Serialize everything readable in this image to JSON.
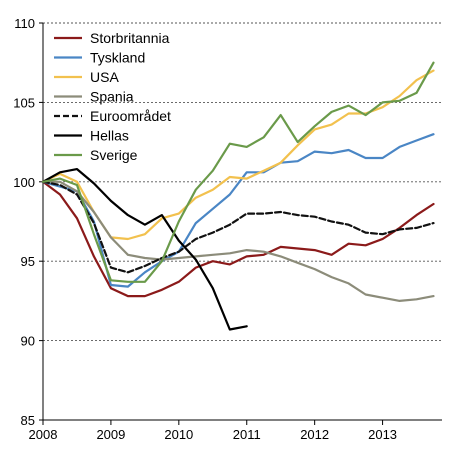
{
  "chart_data": {
    "type": "line",
    "title": "",
    "xlabel": "",
    "ylabel": "",
    "xlim": [
      2008,
      2013.875
    ],
    "ylim": [
      85,
      110
    ],
    "yticks": [
      85,
      90,
      95,
      100,
      105,
      110
    ],
    "xticks": [
      2008,
      2009,
      2010,
      2011,
      2012,
      2013
    ],
    "grid": "horizontal-dotted",
    "legend_position": "top-left",
    "series": [
      {
        "name": "Storbritannia",
        "color": "#8b1a1a",
        "dash": "solid",
        "x": [
          2008,
          2008.25,
          2008.5,
          2008.75,
          2009,
          2009.25,
          2009.5,
          2009.75,
          2010,
          2010.25,
          2010.5,
          2010.75,
          2011,
          2011.25,
          2011.5,
          2011.75,
          2012,
          2012.25,
          2012.5,
          2012.75,
          2013,
          2013.25,
          2013.5,
          2013.75
        ],
        "values": [
          100,
          99.2,
          97.7,
          95.3,
          93.3,
          92.8,
          92.8,
          93.2,
          93.7,
          94.6,
          95.0,
          94.8,
          95.3,
          95.4,
          95.9,
          95.8,
          95.7,
          95.4,
          96.1,
          96.0,
          96.4,
          97.1,
          97.9,
          98.6
        ]
      },
      {
        "name": "Tyskland",
        "color": "#4a86c5",
        "dash": "solid",
        "x": [
          2008,
          2008.25,
          2008.5,
          2008.75,
          2009,
          2009.25,
          2009.5,
          2009.75,
          2010,
          2010.25,
          2010.5,
          2010.75,
          2011,
          2011.25,
          2011.5,
          2011.75,
          2012,
          2012.25,
          2012.5,
          2012.75,
          2013,
          2013.25,
          2013.5,
          2013.75
        ],
        "values": [
          100,
          99.7,
          99.4,
          97.5,
          93.5,
          93.4,
          94.3,
          95.0,
          95.6,
          97.4,
          98.3,
          99.2,
          100.6,
          100.6,
          101.2,
          101.3,
          101.9,
          101.8,
          102.0,
          101.5,
          101.5,
          102.2,
          102.6,
          103.0
        ]
      },
      {
        "name": "USA",
        "color": "#f2c14e",
        "dash": "solid",
        "x": [
          2008,
          2008.25,
          2008.5,
          2008.75,
          2009,
          2009.25,
          2009.5,
          2009.75,
          2010,
          2010.25,
          2010.5,
          2010.75,
          2011,
          2011.25,
          2011.5,
          2011.75,
          2012,
          2012.25,
          2012.5,
          2012.75,
          2013,
          2013.25,
          2013.5,
          2013.75
        ],
        "values": [
          100,
          100.5,
          100.0,
          98.1,
          96.5,
          96.4,
          96.7,
          97.7,
          98.0,
          99.0,
          99.5,
          100.3,
          100.2,
          100.7,
          101.2,
          102.3,
          103.3,
          103.6,
          104.3,
          104.3,
          104.7,
          105.4,
          106.4,
          107.0
        ]
      },
      {
        "name": "Spania",
        "color": "#8c8c7a",
        "dash": "solid",
        "x": [
          2008,
          2008.25,
          2008.5,
          2008.75,
          2009,
          2009.25,
          2009.5,
          2009.75,
          2010,
          2010.25,
          2010.5,
          2010.75,
          2011,
          2011.25,
          2011.5,
          2011.75,
          2012,
          2012.25,
          2012.5,
          2012.75,
          2013,
          2013.25,
          2013.5,
          2013.75
        ],
        "values": [
          100,
          100.0,
          99.4,
          98.1,
          96.5,
          95.4,
          95.2,
          95.1,
          95.2,
          95.3,
          95.4,
          95.5,
          95.7,
          95.6,
          95.3,
          94.9,
          94.5,
          94.0,
          93.6,
          92.9,
          92.7,
          92.5,
          92.6,
          92.8
        ]
      },
      {
        "name": "Euroområdet",
        "color": "#111111",
        "dash": "dashed",
        "x": [
          2008,
          2008.25,
          2008.5,
          2008.75,
          2009,
          2009.25,
          2009.5,
          2009.75,
          2010,
          2010.25,
          2010.5,
          2010.75,
          2011,
          2011.25,
          2011.5,
          2011.75,
          2012,
          2012.25,
          2012.5,
          2012.75,
          2013,
          2013.25,
          2013.5,
          2013.75
        ],
        "values": [
          100,
          99.8,
          99.2,
          97.4,
          94.6,
          94.3,
          94.7,
          95.2,
          95.6,
          96.4,
          96.8,
          97.3,
          98.0,
          98.0,
          98.1,
          97.9,
          97.8,
          97.5,
          97.3,
          96.8,
          96.7,
          97.0,
          97.1,
          97.4
        ]
      },
      {
        "name": "Hellas",
        "color": "#000000",
        "dash": "solid",
        "x": [
          2008,
          2008.25,
          2008.5,
          2008.75,
          2009,
          2009.25,
          2009.5,
          2009.75,
          2010,
          2010.25,
          2010.5,
          2010.75,
          2011
        ],
        "values": [
          100,
          100.6,
          100.8,
          99.9,
          98.8,
          97.9,
          97.3,
          97.9,
          96.3,
          95.1,
          93.3,
          90.7,
          90.9
        ]
      },
      {
        "name": "Sverige",
        "color": "#6a9a4a",
        "dash": "solid",
        "x": [
          2008,
          2008.25,
          2008.5,
          2008.75,
          2009,
          2009.25,
          2009.5,
          2009.75,
          2010,
          2010.25,
          2010.5,
          2010.75,
          2011,
          2011.25,
          2011.5,
          2011.75,
          2012,
          2012.25,
          2012.5,
          2012.75,
          2013,
          2013.25,
          2013.5,
          2013.75
        ],
        "values": [
          100,
          100.2,
          99.8,
          96.7,
          93.8,
          93.7,
          93.7,
          95.0,
          97.5,
          99.5,
          100.7,
          102.4,
          102.2,
          102.8,
          104.2,
          102.5,
          103.5,
          104.4,
          104.8,
          104.2,
          105.0,
          105.1,
          105.6,
          107.5
        ]
      }
    ]
  }
}
